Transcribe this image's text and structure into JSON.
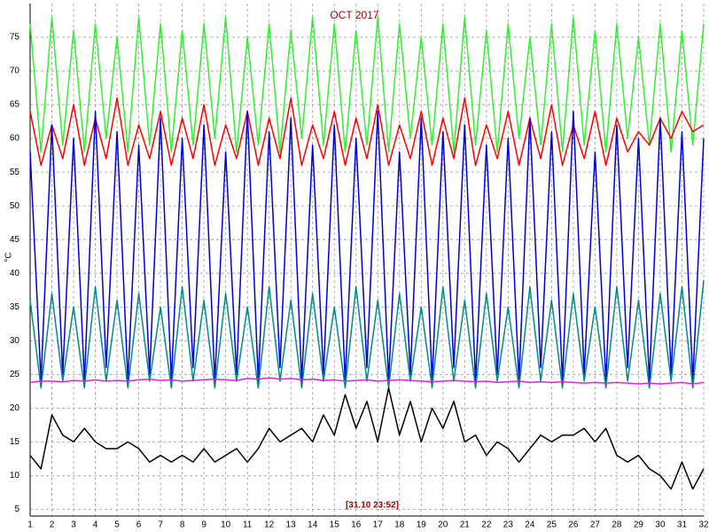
{
  "chart_data": {
    "type": "line",
    "title": "OCT 2017",
    "ylabel": "°C",
    "annotation": "[31.10 23:52]",
    "x": [
      1,
      1.5,
      2,
      2.5,
      3,
      3.5,
      4,
      4.5,
      5,
      5.5,
      6,
      6.5,
      7,
      7.5,
      8,
      8.5,
      9,
      9.5,
      10,
      10.5,
      11,
      11.5,
      12,
      12.5,
      13,
      13.5,
      14,
      14.5,
      15,
      15.5,
      16,
      16.5,
      17,
      17.5,
      18,
      18.5,
      19,
      19.5,
      20,
      20.5,
      21,
      21.5,
      22,
      22.5,
      23,
      23.5,
      24,
      24.5,
      25,
      25.5,
      26,
      26.5,
      27,
      27.5,
      28,
      28.5,
      29,
      29.5,
      30,
      30.5,
      31,
      31.5,
      32
    ],
    "series": [
      {
        "color": "#33ee33",
        "values": [
          77,
          58,
          78,
          59,
          76,
          58,
          77,
          60,
          75,
          58,
          78,
          59,
          77,
          58,
          76,
          59,
          77,
          60,
          78,
          58,
          75,
          59,
          77,
          58,
          76,
          60,
          78,
          59,
          77,
          58,
          76,
          59,
          78,
          58,
          77,
          60,
          75,
          59,
          77,
          58,
          78,
          59,
          76,
          58,
          77,
          60,
          75,
          59,
          77,
          58,
          78,
          59,
          76,
          58,
          77,
          60,
          75,
          59,
          77,
          58,
          76,
          59,
          77
        ]
      },
      {
        "color": "#ff0000",
        "values": [
          64,
          56,
          62,
          57,
          65,
          56,
          63,
          57,
          66,
          56,
          62,
          57,
          64,
          56,
          63,
          57,
          65,
          56,
          62,
          57,
          64,
          56,
          63,
          57,
          66,
          56,
          62,
          57,
          64,
          56,
          63,
          57,
          65,
          56,
          62,
          57,
          64,
          56,
          63,
          57,
          66,
          56,
          62,
          57,
          64,
          56,
          63,
          57,
          65,
          56,
          62,
          57,
          64,
          56,
          63,
          58,
          61,
          59,
          63,
          60,
          64,
          61,
          62
        ]
      },
      {
        "color": "#0000dd",
        "values": [
          58,
          24,
          62,
          25,
          60,
          24,
          64,
          26,
          61,
          24,
          59,
          25,
          63,
          24,
          60,
          26,
          62,
          24,
          58,
          25,
          64,
          24,
          61,
          26,
          63,
          24,
          59,
          25,
          62,
          24,
          60,
          26,
          64,
          24,
          58,
          25,
          63,
          24,
          61,
          26,
          62,
          24,
          59,
          25,
          60,
          24,
          63,
          26,
          61,
          24,
          64,
          25,
          58,
          24,
          62,
          26,
          60,
          24,
          63,
          25,
          61,
          24,
          60
        ]
      },
      {
        "color": "#008b8b",
        "values": [
          36,
          23,
          37,
          24,
          35,
          23,
          38,
          24,
          36,
          23,
          37,
          24,
          35,
          23,
          38,
          24,
          36,
          23,
          37,
          24,
          35,
          23,
          38,
          24,
          36,
          23,
          37,
          24,
          35,
          23,
          38,
          24,
          36,
          23,
          37,
          24,
          35,
          23,
          38,
          24,
          36,
          23,
          37,
          24,
          35,
          23,
          38,
          24,
          36,
          23,
          37,
          24,
          35,
          23,
          38,
          24,
          36,
          23,
          37,
          24,
          38,
          23,
          39
        ]
      },
      {
        "color": "#dd22dd",
        "values": [
          23.8,
          24,
          24,
          23.9,
          24.1,
          24,
          24.2,
          24,
          24.1,
          24,
          24.2,
          24.3,
          24.1,
          24.2,
          24,
          24.1,
          24.2,
          24.3,
          24.2,
          24.1,
          24.4,
          24.3,
          24.5,
          24.3,
          24.4,
          24.2,
          24.3,
          24.1,
          24.2,
          24,
          24.1,
          24.2,
          24,
          24.1,
          24.2,
          24.1,
          24,
          23.9,
          24,
          24.1,
          24,
          23.9,
          24,
          23.8,
          23.9,
          24,
          23.8,
          23.9,
          23.8,
          23.9,
          23.8,
          23.7,
          23.8,
          23.7,
          23.8,
          23.7,
          23.6,
          23.7,
          23.6,
          23.7,
          23.8,
          23.6,
          23.8
        ]
      },
      {
        "color": "#000000",
        "values": [
          13,
          11,
          19,
          16,
          15,
          17,
          15,
          14,
          14,
          15,
          14,
          12,
          13,
          12,
          13,
          12,
          14,
          12,
          13,
          14,
          12,
          14,
          17,
          15,
          16,
          17,
          15,
          19,
          16,
          22,
          17,
          21,
          15,
          23,
          16,
          21,
          15,
          20,
          17,
          21,
          15,
          16,
          13,
          15,
          14,
          12,
          14,
          16,
          15,
          16,
          16,
          17,
          15,
          17,
          13,
          12,
          13,
          11,
          10,
          8,
          12,
          8,
          11
        ]
      }
    ],
    "xlim": [
      1,
      32
    ],
    "ylim": [
      4,
      80
    ],
    "xticks": [
      1,
      2,
      3,
      4,
      5,
      6,
      7,
      8,
      9,
      10,
      11,
      12,
      13,
      14,
      15,
      16,
      17,
      18,
      19,
      20,
      21,
      22,
      23,
      24,
      25,
      26,
      27,
      28,
      29,
      30,
      31,
      32
    ],
    "yticks": [
      5,
      10,
      15,
      20,
      25,
      30,
      35,
      40,
      45,
      50,
      55,
      60,
      65,
      70,
      75
    ],
    "grid": true,
    "title_color": "#990000"
  }
}
